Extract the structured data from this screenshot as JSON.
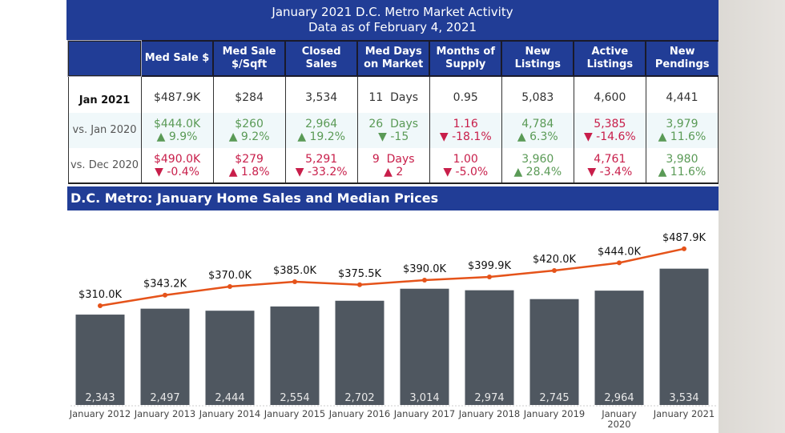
{
  "header": {
    "title_line1": "January 2021 D.C. Metro Market Activity",
    "title_line2": "Data as of February 4, 2021"
  },
  "table": {
    "columns": [
      "Med Sale $",
      "Med Sale $/Sqft",
      "Closed Sales",
      "Med Days on Market",
      "Months of Supply",
      "New Listings",
      "Active Listings",
      "New Pendings"
    ],
    "rows": [
      {
        "label": "Jan 2021",
        "cells": [
          {
            "v": "$487.9K"
          },
          {
            "v": "$284"
          },
          {
            "v": "3,534"
          },
          {
            "v": "11  Days"
          },
          {
            "v": "0.95"
          },
          {
            "v": "5,083"
          },
          {
            "v": "4,600"
          },
          {
            "v": "4,441"
          }
        ]
      },
      {
        "label": "vs. Jan 2020",
        "cells": [
          {
            "v": "$444.0K",
            "c": "▲ 9.9%",
            "s": "g"
          },
          {
            "v": "$260",
            "c": "▲ 9.2%",
            "s": "g"
          },
          {
            "v": "2,964",
            "c": "▲ 19.2%",
            "s": "g"
          },
          {
            "v": "26  Days",
            "c": "▼ -15",
            "s": "g"
          },
          {
            "v": "1.16",
            "c": "▼ -18.1%",
            "s": "rd"
          },
          {
            "v": "4,784",
            "c": "▲ 6.3%",
            "s": "g"
          },
          {
            "v": "5,385",
            "c": "▼ -14.6%",
            "s": "rd"
          },
          {
            "v": "3,979",
            "c": "▲ 11.6%",
            "s": "g"
          }
        ]
      },
      {
        "label": "vs. Dec 2020",
        "cells": [
          {
            "v": "$490.0K",
            "c": "▼ -0.4%",
            "s": "rd"
          },
          {
            "v": "$279",
            "c": "▲ 1.8%",
            "s": "rd"
          },
          {
            "v": "5,291",
            "c": "▼ -33.2%",
            "s": "rd"
          },
          {
            "v": "9  Days",
            "c": "▲ 2",
            "s": "rd"
          },
          {
            "v": "1.00",
            "c": "▼ -5.0%",
            "s": "rd"
          },
          {
            "v": "3,960",
            "c": "▲ 28.4%",
            "s": "g"
          },
          {
            "v": "4,761",
            "c": "▼ -3.4%",
            "s": "rd"
          },
          {
            "v": "3,980",
            "c": "▲ 11.6%",
            "s": "g"
          }
        ]
      }
    ]
  },
  "colors": {
    "header_blue": "#213d96",
    "bar": "#4f5760",
    "line": "#e5531a",
    "positive": "#5a9a56",
    "negative": "#c81e4a"
  },
  "chart_data": {
    "type": "bar+line",
    "title": "D.C. Metro: January Home Sales and Median Prices",
    "categories": [
      "January 2012",
      "January 2013",
      "January 2014",
      "January 2015",
      "January 2016",
      "January 2017",
      "January 2018",
      "January 2019",
      "January 2020",
      "January 2021"
    ],
    "series": [
      {
        "type": "bar",
        "values": [
          2343,
          2497,
          2444,
          2554,
          2702,
          3014,
          2974,
          2745,
          2964,
          3534
        ],
        "labels": [
          "2,343",
          "2,497",
          "2,444",
          "2,554",
          "2,702",
          "3,014",
          "2,974",
          "2,745",
          "2,964",
          "3,534"
        ]
      },
      {
        "type": "line",
        "values": [
          310.0,
          343.2,
          370.0,
          385.0,
          375.5,
          390.0,
          399.9,
          420.0,
          444.0,
          487.9
        ],
        "labels": [
          "$310.0K",
          "$343.2K",
          "$370.0K",
          "$385.0K",
          "$375.5K",
          "$390.0K",
          "$399.9K",
          "$420.0K",
          "$444.0K",
          "$487.9K"
        ]
      }
    ],
    "grid": false,
    "legend": "none"
  }
}
